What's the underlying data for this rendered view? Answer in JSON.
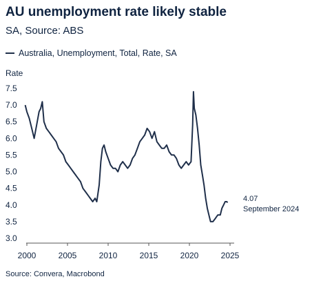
{
  "header": {
    "title": "AU unemployment rate likely stable",
    "subtitle": "SA, Source: ABS"
  },
  "footer": {
    "source": "Source: Convera, Macrobond"
  },
  "colors": {
    "line": "#1f2f4a",
    "text": "#0f2340",
    "axis": "#555555"
  },
  "chart_data": {
    "type": "line",
    "title": "AU unemployment rate likely stable",
    "subtitle": "SA, Source: ABS",
    "ylabel": "Rate",
    "xlabel": "",
    "ylim": [
      2.9,
      7.6
    ],
    "xlim": [
      1999.8,
      2024.9
    ],
    "yticks": [
      "7.5",
      "7.0",
      "6.5",
      "6.0",
      "5.5",
      "5.0",
      "4.5",
      "4.0",
      "3.5",
      "3.0"
    ],
    "xticks": [
      "2000",
      "2005",
      "2010",
      "2015",
      "2020",
      "2025"
    ],
    "legend_position": "top-left",
    "grid": false,
    "series": [
      {
        "name": "Australia, Unemployment, Total, Rate, SA",
        "x": [
          1999.8,
          2000.0,
          2000.3,
          2000.6,
          2000.9,
          2001.2,
          2001.5,
          2001.7,
          2001.9,
          2002.1,
          2002.4,
          2002.7,
          2003.0,
          2003.3,
          2003.6,
          2003.9,
          2004.2,
          2004.5,
          2004.8,
          2005.1,
          2005.4,
          2005.7,
          2006.0,
          2006.3,
          2006.6,
          2006.9,
          2007.2,
          2007.5,
          2007.8,
          2008.1,
          2008.4,
          2008.6,
          2008.9,
          2009.1,
          2009.3,
          2009.5,
          2009.7,
          2010.0,
          2010.3,
          2010.6,
          2010.9,
          2011.2,
          2011.5,
          2011.8,
          2012.1,
          2012.4,
          2012.7,
          2013.0,
          2013.3,
          2013.6,
          2013.9,
          2014.2,
          2014.5,
          2014.8,
          2015.1,
          2015.4,
          2015.7,
          2016.0,
          2016.3,
          2016.6,
          2016.9,
          2017.2,
          2017.5,
          2017.8,
          2018.1,
          2018.4,
          2018.7,
          2019.0,
          2019.3,
          2019.6,
          2019.9,
          2020.2,
          2020.4,
          2020.5,
          2020.6,
          2020.8,
          2021.0,
          2021.2,
          2021.4,
          2021.6,
          2021.8,
          2022.0,
          2022.2,
          2022.4,
          2022.6,
          2022.9,
          2023.2,
          2023.5,
          2023.8,
          2024.0,
          2024.2,
          2024.4,
          2024.6,
          2024.7
        ],
        "values": [
          7.0,
          6.8,
          6.6,
          6.3,
          6.0,
          6.4,
          6.8,
          6.9,
          7.1,
          6.5,
          6.3,
          6.2,
          6.1,
          6.0,
          5.9,
          5.7,
          5.6,
          5.5,
          5.3,
          5.2,
          5.1,
          5.0,
          4.9,
          4.8,
          4.7,
          4.5,
          4.4,
          4.3,
          4.2,
          4.1,
          4.2,
          4.1,
          4.6,
          5.3,
          5.7,
          5.8,
          5.6,
          5.4,
          5.2,
          5.1,
          5.1,
          5.0,
          5.2,
          5.3,
          5.2,
          5.1,
          5.2,
          5.4,
          5.5,
          5.7,
          5.9,
          6.0,
          6.1,
          6.3,
          6.2,
          6.0,
          6.2,
          5.9,
          5.8,
          5.7,
          5.7,
          5.8,
          5.6,
          5.5,
          5.5,
          5.4,
          5.2,
          5.1,
          5.2,
          5.3,
          5.2,
          5.3,
          6.4,
          7.4,
          6.9,
          6.7,
          6.3,
          5.8,
          5.2,
          4.9,
          4.6,
          4.2,
          3.9,
          3.7,
          3.5,
          3.5,
          3.6,
          3.7,
          3.7,
          3.9,
          4.0,
          4.1,
          4.1,
          4.07
        ]
      }
    ],
    "annotation": {
      "value": "4.07",
      "label": "September 2024"
    }
  }
}
